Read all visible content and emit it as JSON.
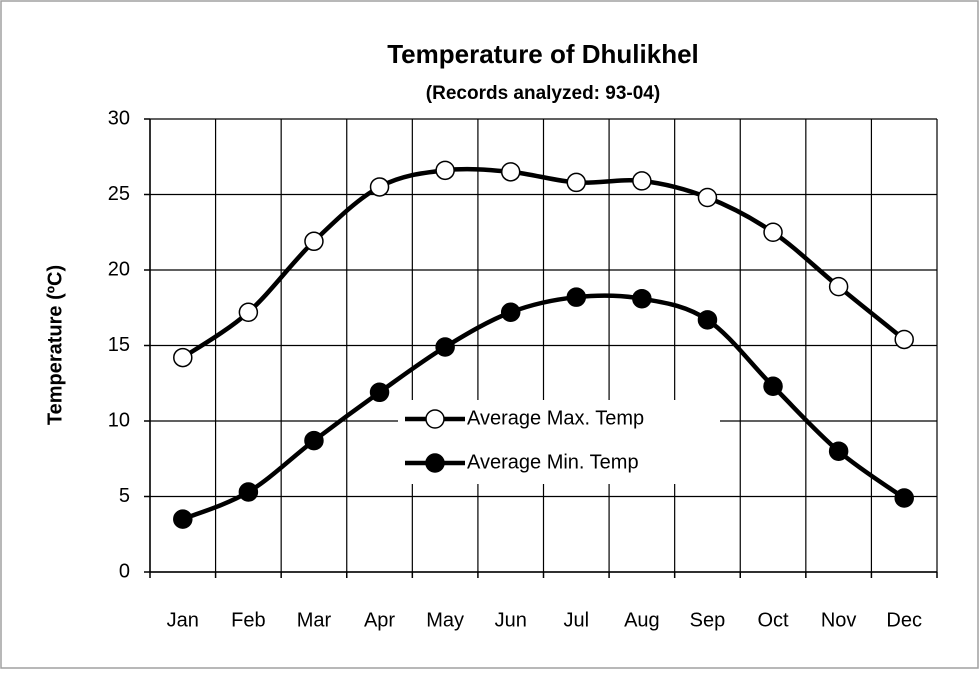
{
  "chart_data": {
    "type": "line",
    "title": "Temperature of Dhulikhel",
    "subtitle": "(Records analyzed: 93-04)",
    "y_label": "Temperature (ºC)",
    "categories": [
      "Jan",
      "Feb",
      "Mar",
      "Apr",
      "May",
      "Jun",
      "Jul",
      "Aug",
      "Sep",
      "Oct",
      "Nov",
      "Dec"
    ],
    "series": [
      {
        "name": "Average Max. Temp",
        "color": "#000000",
        "marker": "open",
        "values": [
          14.2,
          17.2,
          21.9,
          25.5,
          26.6,
          26.5,
          25.8,
          25.9,
          24.8,
          22.5,
          18.9,
          15.4
        ]
      },
      {
        "name": "Average Min. Temp",
        "color": "#000000",
        "marker": "filled",
        "values": [
          3.5,
          5.3,
          8.7,
          11.9,
          14.9,
          17.2,
          18.2,
          18.1,
          16.7,
          12.3,
          8.0,
          4.9
        ]
      }
    ],
    "ylim": [
      0,
      30
    ],
    "yticks": [
      0,
      5,
      10,
      15,
      20,
      25,
      30
    ],
    "grid": true
  }
}
